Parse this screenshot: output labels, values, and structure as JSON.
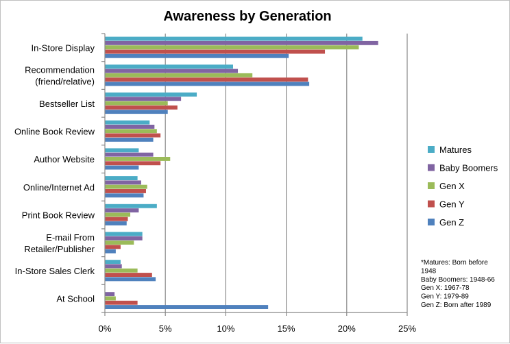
{
  "chart_data": {
    "type": "bar",
    "orientation": "horizontal",
    "title": "Awareness by Generation",
    "categories": [
      [
        "In-Store Display"
      ],
      [
        "Recommendation",
        "(friend/relative)"
      ],
      [
        "Bestseller List"
      ],
      [
        "Online Book Review"
      ],
      [
        "Author Website"
      ],
      [
        "Online/Internet Ad"
      ],
      [
        "Print Book Review"
      ],
      [
        "E-mail From",
        "Retailer/Publisher"
      ],
      [
        "In-Store Sales Clerk"
      ],
      [
        "At School"
      ]
    ],
    "series": [
      {
        "name": "Matures",
        "color": "#4BACC6",
        "values": [
          21.3,
          10.6,
          7.6,
          3.7,
          2.8,
          2.7,
          4.3,
          3.1,
          1.3,
          0
        ]
      },
      {
        "name": "Baby Boomers",
        "color": "#8064A2",
        "values": [
          22.6,
          11.0,
          6.3,
          4.1,
          4.0,
          3.0,
          2.8,
          3.1,
          1.4,
          0.8
        ]
      },
      {
        "name": "Gen X",
        "color": "#9BBB59",
        "values": [
          21.0,
          12.2,
          5.2,
          4.3,
          5.4,
          3.5,
          2.1,
          2.4,
          2.7,
          0.9
        ]
      },
      {
        "name": "Gen Y",
        "color": "#C0504D",
        "values": [
          18.2,
          16.8,
          6.0,
          4.6,
          4.6,
          3.4,
          1.9,
          1.3,
          3.9,
          2.7
        ]
      },
      {
        "name": "Gen Z",
        "color": "#4F81BD",
        "values": [
          15.2,
          16.9,
          5.2,
          4.0,
          2.8,
          3.2,
          1.8,
          0.9,
          4.2,
          13.5
        ]
      }
    ],
    "x_ticks": [
      "0%",
      "5%",
      "10%",
      "15%",
      "20%",
      "25%"
    ],
    "xlim": [
      0,
      25
    ],
    "grid": true,
    "legend_position": "right",
    "note_lines": [
      "*Matures: Born before",
      "1948",
      "Baby Boomers: 1948-66",
      "Gen X: 1967-78",
      "Gen Y: 1979-89",
      "Gen Z: Born after 1989"
    ]
  }
}
